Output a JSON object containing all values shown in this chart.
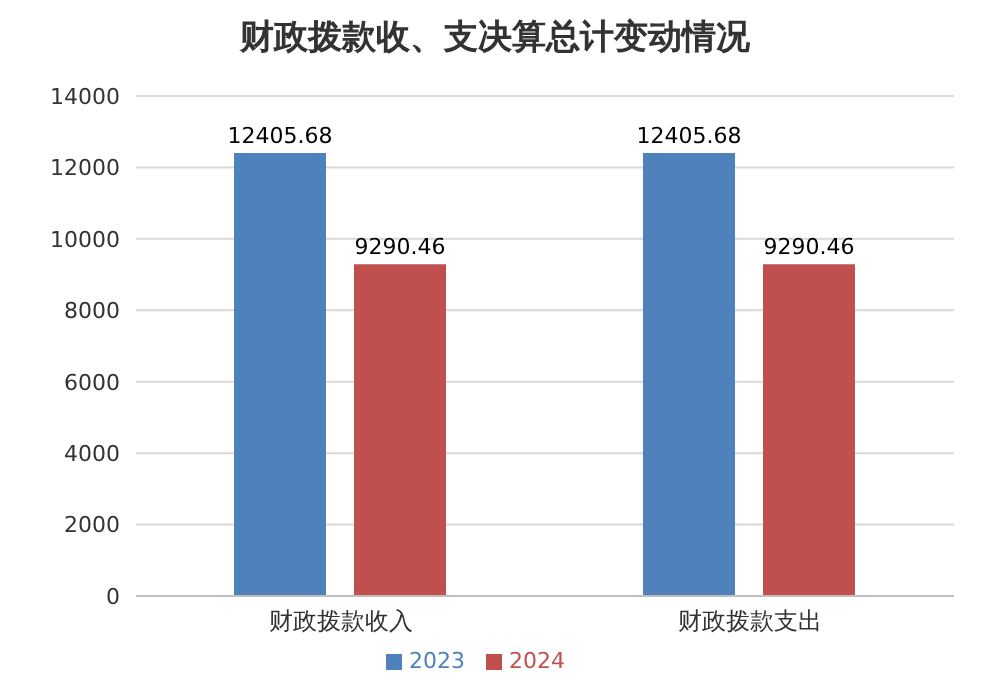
{
  "chart_data": {
    "type": "bar",
    "title": "财政拨款收、支决算总计变动情况",
    "categories": [
      "财政拨款收入",
      "财政拨款支出"
    ],
    "series": [
      {
        "name": "2023",
        "color": "#4f81bd",
        "values": [
          12405.68,
          12405.68
        ]
      },
      {
        "name": "2024",
        "color": "#c0504d",
        "values": [
          9290.46,
          9290.46
        ]
      }
    ],
    "ylim": [
      0,
      14000
    ],
    "yticks": [
      0,
      2000,
      4000,
      6000,
      8000,
      10000,
      12000,
      14000
    ],
    "grid": "y",
    "legend": "bottom",
    "data_labels": true
  }
}
